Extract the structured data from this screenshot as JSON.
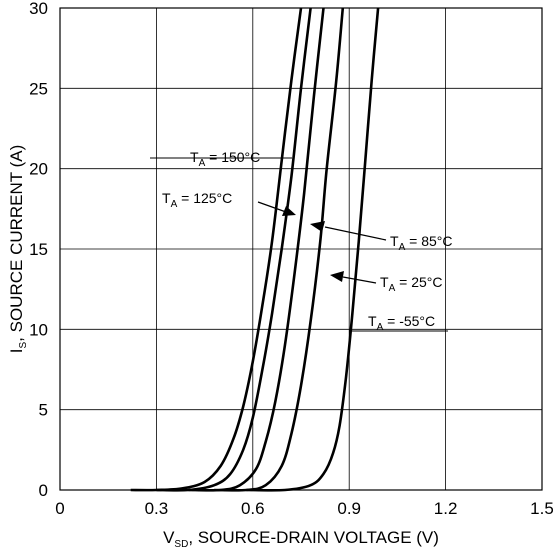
{
  "chart_data": {
    "type": "line",
    "xlabel": "SOURCE-DRAIN VOLTAGE (V)",
    "xlabel_symbol": "V",
    "xlabel_sub": "SD",
    "ylabel": "SOURCE CURRENT (A)",
    "ylabel_symbol": "I",
    "ylabel_sub": "S",
    "xlim": [
      0,
      1.5
    ],
    "ylim": [
      0,
      30
    ],
    "xticks": [
      "0",
      "0.3",
      "0.6",
      "0.9",
      "1.2",
      "1.5"
    ],
    "yticks": [
      "0",
      "5",
      "10",
      "15",
      "20",
      "25",
      "30"
    ],
    "grid": true,
    "series": [
      {
        "name": "TA = 150°C",
        "label_main": "T",
        "label_sub": "A",
        "label_rest": " = 150°C",
        "x": [
          0.22,
          0.3,
          0.38,
          0.45,
          0.5,
          0.54,
          0.57,
          0.6,
          0.63,
          0.66,
          0.69,
          0.72,
          0.75
        ],
        "y": [
          0,
          0,
          0.1,
          0.5,
          1.5,
          3.2,
          5.2,
          8,
          11.5,
          15.5,
          20.5,
          25.5,
          30
        ]
      },
      {
        "name": "TA = 125°C",
        "label_main": "T",
        "label_sub": "A",
        "label_rest": " = 125°C",
        "x": [
          0.3,
          0.4,
          0.48,
          0.53,
          0.57,
          0.6,
          0.63,
          0.66,
          0.69,
          0.72,
          0.75,
          0.78
        ],
        "y": [
          0,
          0,
          0.3,
          1.0,
          2.5,
          4.5,
          7.5,
          11,
          15,
          19.5,
          25,
          30
        ]
      },
      {
        "name": "TA = 85°C",
        "label_main": "T",
        "label_sub": "A",
        "label_rest": " = 85°C",
        "x": [
          0.4,
          0.5,
          0.56,
          0.61,
          0.64,
          0.67,
          0.7,
          0.73,
          0.76,
          0.79,
          0.82
        ],
        "y": [
          0,
          0,
          0.3,
          1.3,
          3.0,
          5.5,
          9.0,
          13.5,
          18.5,
          24.5,
          30
        ]
      },
      {
        "name": "TA = 25°C",
        "label_main": "T",
        "label_sub": "A",
        "label_rest": " = 25°C",
        "x": [
          0.48,
          0.58,
          0.64,
          0.69,
          0.72,
          0.75,
          0.78,
          0.81,
          0.83,
          0.86,
          0.88
        ],
        "y": [
          0,
          0,
          0.3,
          1.5,
          3.5,
          6.5,
          10.5,
          15.5,
          20.0,
          25.5,
          30
        ]
      },
      {
        "name": "TA = -55°C",
        "label_main": "T",
        "label_sub": "A",
        "label_rest": " = -55°C",
        "x": [
          0.58,
          0.7,
          0.78,
          0.82,
          0.85,
          0.87,
          0.89,
          0.91,
          0.93,
          0.95,
          0.97,
          0.99
        ],
        "y": [
          0,
          0,
          0.3,
          1.0,
          2.3,
          4.0,
          7.0,
          11.0,
          15.5,
          20.5,
          25.5,
          30
        ]
      }
    ]
  }
}
